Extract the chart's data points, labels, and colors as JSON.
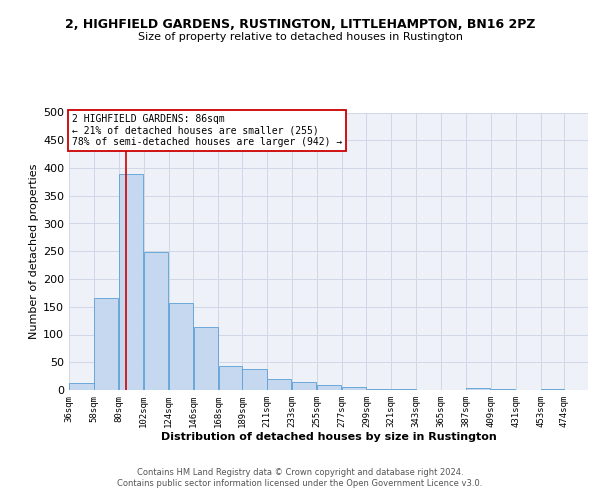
{
  "title": "2, HIGHFIELD GARDENS, RUSTINGTON, LITTLEHAMPTON, BN16 2PZ",
  "subtitle": "Size of property relative to detached houses in Rustington",
  "xlabel": "Distribution of detached houses by size in Rustington",
  "ylabel": "Number of detached properties",
  "bin_labels": [
    "36sqm",
    "58sqm",
    "80sqm",
    "102sqm",
    "124sqm",
    "146sqm",
    "168sqm",
    "189sqm",
    "211sqm",
    "233sqm",
    "255sqm",
    "277sqm",
    "299sqm",
    "321sqm",
    "343sqm",
    "365sqm",
    "387sqm",
    "409sqm",
    "431sqm",
    "453sqm",
    "474sqm"
  ],
  "bar_values": [
    12,
    165,
    390,
    248,
    157,
    113,
    44,
    38,
    19,
    14,
    9,
    6,
    2,
    1,
    0,
    0,
    3,
    1,
    0,
    1
  ],
  "bar_color": "#c5d8f0",
  "bar_edge_color": "#5a9fd4",
  "vline_x": 86,
  "vline_color": "#cc0000",
  "annotation_line1": "2 HIGHFIELD GARDENS: 86sqm",
  "annotation_line2": "← 21% of detached houses are smaller (255)",
  "annotation_line3": "78% of semi-detached houses are larger (942) →",
  "annotation_box_color": "#cc0000",
  "ylim": [
    0,
    500
  ],
  "yticks": [
    0,
    50,
    100,
    150,
    200,
    250,
    300,
    350,
    400,
    450,
    500
  ],
  "bin_edges": [
    36,
    58,
    80,
    102,
    124,
    146,
    168,
    189,
    211,
    233,
    255,
    277,
    299,
    321,
    343,
    365,
    387,
    409,
    431,
    453,
    474
  ],
  "footer_text": "Contains HM Land Registry data © Crown copyright and database right 2024.\nContains public sector information licensed under the Open Government Licence v3.0.",
  "grid_color": "#d0d8e8",
  "bg_color": "#eef2f8"
}
